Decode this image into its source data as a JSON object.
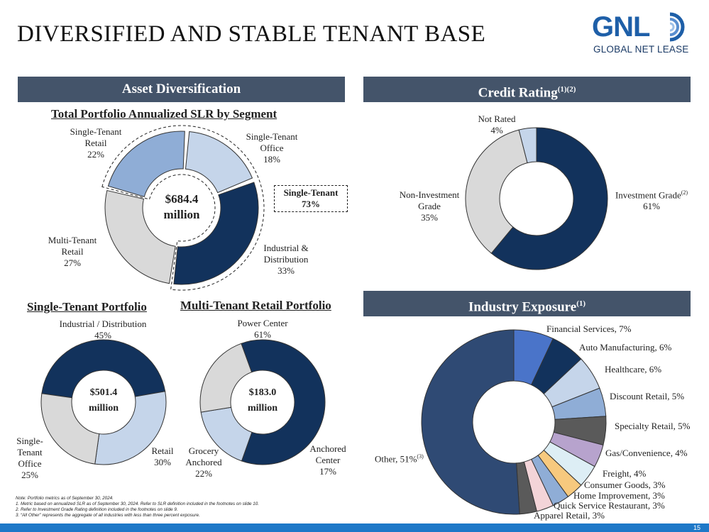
{
  "title": "DIVERSIFIED AND STABLE TENANT BASE",
  "logo": {
    "brand": "GNL",
    "subtitle": "GLOBAL NET LEASE"
  },
  "asset": {
    "bar": "Asset Diversification",
    "heading": "Total Portfolio Annualized SLR by Segment",
    "center": [
      "$684.4",
      "million"
    ],
    "single_tenant_box": [
      "Single-Tenant",
      "73%"
    ],
    "labels": {
      "retail": [
        "Single-Tenant",
        "Retail",
        "22%"
      ],
      "office": [
        "Single-Tenant",
        "Office",
        "18%"
      ],
      "industrial": [
        "Industrial &",
        "Distribution",
        "33%"
      ],
      "multi": [
        "Multi-Tenant",
        "Retail",
        "27%"
      ]
    }
  },
  "credit": {
    "bar": "Credit Rating",
    "bar_sup": "(1)(2)",
    "labels": {
      "not_rated": [
        "Not Rated",
        "4%"
      ],
      "investment": [
        "Investment Grade",
        "61%"
      ],
      "investment_sup": "(2)",
      "non_investment": [
        "Non-Investment",
        "Grade",
        "35%"
      ]
    }
  },
  "single_tenant": {
    "heading": "Single-Tenant Portfolio",
    "center": [
      "$501.4",
      "million"
    ],
    "labels": {
      "industrial": [
        "Industrial / Distribution",
        "45%"
      ],
      "retail": [
        "Retail",
        "30%"
      ],
      "office": [
        "Single-",
        "Tenant",
        "Office",
        "25%"
      ]
    }
  },
  "multi_tenant": {
    "heading": "Multi-Tenant Retail Portfolio",
    "center": [
      "$183.0",
      "million"
    ],
    "labels": {
      "power": [
        "Power Center",
        "61%"
      ],
      "anchored": [
        "Anchored",
        "Center",
        "17%"
      ],
      "grocery": [
        "Grocery",
        "Anchored",
        "22%"
      ]
    }
  },
  "industry": {
    "bar": "Industry Exposure",
    "bar_sup": "(1)",
    "other_label": "Other, 51%",
    "other_sup": "(3)",
    "items": [
      "Financial Services, 7%",
      "Auto Manufacturing, 6%",
      "Healthcare, 6%",
      "Discount Retail, 5%",
      "Specialty Retail, 5%",
      "Gas/Convenience, 4%",
      "Freight, 4%",
      "Consumer Goods, 3%",
      "Home Improvement, 3%",
      "Quick Service Restaurant, 3%",
      "Apparel Retail, 3%"
    ]
  },
  "notes": [
    "Note: Portfolio metrics as of September 30, 2024.",
    "1.     Metric based on annualized SLR as of September 30, 2024. Refer to SLR definition included in the footnotes on slide 10.",
    "2.     Refer to Investment Grade Rating definition included in the footnotes on slide 9.",
    "3.     “All Other” represents the aggregate of all industries with less than three percent exposure."
  ],
  "page_number": "15",
  "chart_data": [
    {
      "type": "pie",
      "title": "Total Portfolio Annualized SLR by Segment",
      "categories": [
        "Single-Tenant Office",
        "Industrial & Distribution",
        "Multi-Tenant Retail",
        "Single-Tenant Retail"
      ],
      "values": [
        18,
        33,
        27,
        22
      ],
      "colors": [
        "#c5d5ea",
        "#12325c",
        "#d9d9d9",
        "#8fadd6"
      ]
    },
    {
      "type": "pie",
      "title": "Credit Rating",
      "categories": [
        "Investment Grade",
        "Non-Investment Grade",
        "Not Rated"
      ],
      "values": [
        61,
        35,
        4
      ],
      "colors": [
        "#12325c",
        "#d9d9d9",
        "#c5d5ea"
      ]
    },
    {
      "type": "pie",
      "title": "Single-Tenant Portfolio",
      "categories": [
        "Industrial / Distribution",
        "Retail",
        "Single-Tenant Office"
      ],
      "values": [
        45,
        30,
        25
      ],
      "colors": [
        "#12325c",
        "#c5d5ea",
        "#d9d9d9"
      ]
    },
    {
      "type": "pie",
      "title": "Multi-Tenant Retail Portfolio",
      "categories": [
        "Power Center",
        "Anchored Center",
        "Grocery Anchored"
      ],
      "values": [
        61,
        17,
        22
      ],
      "colors": [
        "#12325c",
        "#c5d5ea",
        "#d9d9d9"
      ]
    },
    {
      "type": "pie",
      "title": "Industry Exposure",
      "categories": [
        "Financial Services",
        "Auto Manufacturing",
        "Healthcare",
        "Discount Retail",
        "Specialty Retail",
        "Gas/Convenience",
        "Freight",
        "Consumer Goods",
        "Home Improvement",
        "Quick Service Restaurant",
        "Apparel Retail",
        "Other"
      ],
      "values": [
        7,
        6,
        6,
        5,
        5,
        4,
        4,
        3,
        3,
        3,
        3,
        51
      ],
      "colors": [
        "#4a74c9",
        "#12325c",
        "#c5d5ea",
        "#8fadd6",
        "#5a5a5a",
        "#b7a3cd",
        "#ddeef5",
        "#f7c97e",
        "#8fadd6",
        "#f3d4d8",
        "#5a5a5a",
        "#2f4a74"
      ]
    }
  ]
}
